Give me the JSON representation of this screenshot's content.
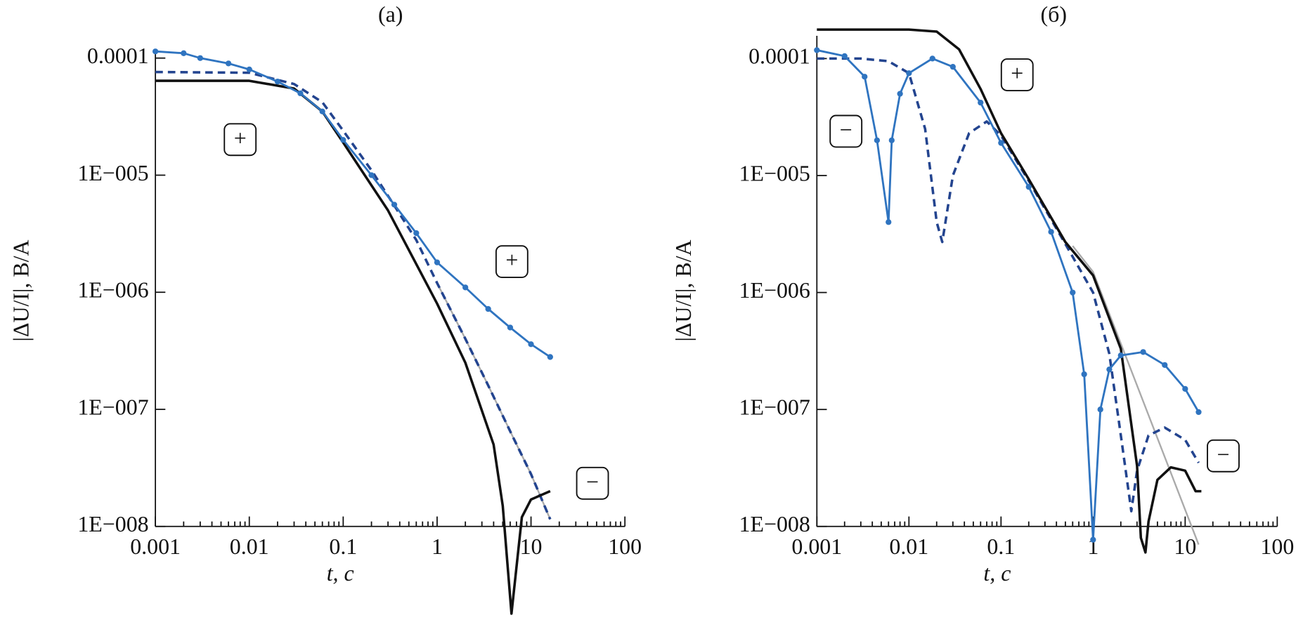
{
  "chart_data": [
    {
      "type": "line",
      "title": "(а)",
      "xlabel": "t, с",
      "ylabel": "|ΔU/I|, В/А",
      "xscale": "log",
      "yscale": "log",
      "xlim": [
        0.001,
        100
      ],
      "ylim": [
        1e-08,
        0.00015
      ],
      "xticks": [
        0.001,
        0.01,
        0.1,
        1,
        10,
        100
      ],
      "yticks": [
        {
          "value": 1e-08,
          "label": "1E−008"
        },
        {
          "value": 1e-07,
          "label": "1E−007"
        },
        {
          "value": 1e-06,
          "label": "1E−006"
        },
        {
          "value": 1e-05,
          "label": "1E−005"
        },
        {
          "value": 0.0001,
          "label": "0.0001"
        }
      ],
      "annotations": [
        "+",
        "+",
        "−"
      ],
      "series": [
        {
          "color": "#aaaaaa",
          "x": [
            1,
            2,
            3.5,
            6,
            10,
            16
          ],
          "values": [
            1.2e-06,
            4e-07,
            1.6e-07,
            6.5e-08,
            2.8e-08,
            1.15e-08
          ]
        },
        {
          "color": "#23448f",
          "dash": true,
          "x": [
            0.001,
            0.01,
            0.03,
            0.06,
            0.1,
            0.2,
            0.35,
            0.6,
            1,
            2,
            3.5,
            6,
            10,
            16
          ],
          "values": [
            7.6e-05,
            7.5e-05,
            6e-05,
            4.2e-05,
            2.4e-05,
            1.1e-05,
            5.5e-06,
            2.8e-06,
            1.2e-06,
            4e-07,
            1.6e-07,
            6.5e-08,
            2.8e-08,
            1.15e-08
          ]
        },
        {
          "color": "#111111",
          "x": [
            0.001,
            0.01,
            0.03,
            0.06,
            0.1,
            0.3,
            1,
            2,
            4,
            5,
            6.2,
            8,
            10,
            16
          ],
          "values": [
            6.4e-05,
            6.4e-05,
            5.5e-05,
            3.5e-05,
            1.9e-05,
            5e-06,
            8e-07,
            2.5e-07,
            5e-08,
            1.5e-08,
            1.8e-09,
            1.2e-08,
            1.7e-08,
            2e-08
          ]
        },
        {
          "color": "#2f74c0",
          "markers": true,
          "x": [
            0.001,
            0.002,
            0.003,
            0.006,
            0.01,
            0.02,
            0.035,
            0.06,
            0.1,
            0.2,
            0.35,
            0.6,
            1,
            2,
            3.5,
            6,
            10,
            16
          ],
          "values": [
            0.000114,
            0.00011,
            0.0001,
            9e-05,
            8e-05,
            6.3e-05,
            5e-05,
            3.5e-05,
            2e-05,
            1e-05,
            5.6e-06,
            3.2e-06,
            1.8e-06,
            1.1e-06,
            7.2e-07,
            5e-07,
            3.6e-07,
            2.8e-07
          ]
        }
      ]
    },
    {
      "type": "line",
      "title": "(б)",
      "xlabel": "t, с",
      "ylabel": "|ΔU/I|, В/А",
      "xscale": "log",
      "yscale": "log",
      "xlim": [
        0.001,
        100
      ],
      "ylim": [
        1e-08,
        0.0002
      ],
      "xticks": [
        0.001,
        0.01,
        0.1,
        1,
        10,
        100
      ],
      "yticks": [
        {
          "value": 1e-08,
          "label": "1E−008"
        },
        {
          "value": 1e-07,
          "label": "1E−007"
        },
        {
          "value": 1e-06,
          "label": "1E−006"
        },
        {
          "value": 1e-05,
          "label": "1E−005"
        },
        {
          "value": 0.0001,
          "label": "0.0001"
        }
      ],
      "annotations": [
        "−",
        "+",
        "−"
      ],
      "series": [
        {
          "color": "#aaaaaa",
          "x": [
            0.6,
            1,
            14
          ],
          "values": [
            2.5e-06,
            1.5e-06,
            7e-09
          ]
        },
        {
          "color": "#23448f",
          "dash": true,
          "x": [
            0.001,
            0.003,
            0.006,
            0.01,
            0.015,
            0.02,
            0.023,
            0.03,
            0.045,
            0.07,
            0.1,
            0.2,
            0.5,
            1,
            1.5,
            2,
            2.6,
            3,
            4,
            6,
            10,
            14
          ],
          "values": [
            0.0001,
            0.0001,
            9.5e-05,
            7.5e-05,
            2.5e-05,
            4e-06,
            2.7e-06,
            1e-05,
            2.3e-05,
            2.9e-05,
            2.2e-05,
            9e-06,
            2.6e-06,
            1e-06,
            3e-07,
            6e-08,
            1.35e-08,
            3e-08,
            6e-08,
            7e-08,
            5.5e-08,
            3.5e-08
          ]
        },
        {
          "color": "#111111",
          "x": [
            0.001,
            0.01,
            0.02,
            0.035,
            0.06,
            0.1,
            0.2,
            0.5,
            1,
            2,
            3,
            3.3,
            3.7,
            4,
            5,
            7,
            10,
            13,
            15
          ],
          "values": [
            0.000177,
            0.000177,
            0.00017,
            0.00012,
            5.5e-05,
            2.3e-05,
            9.3e-06,
            2.7e-06,
            1.4e-06,
            3.3e-07,
            3.3e-08,
            8e-09,
            6e-09,
            1.1e-08,
            2.5e-08,
            3.2e-08,
            3e-08,
            2e-08,
            2e-08
          ]
        },
        {
          "color": "#2f74c0",
          "markers": true,
          "x": [
            0.001,
            0.002,
            0.0033,
            0.0045,
            0.006,
            0.0065,
            0.008,
            0.01,
            0.018,
            0.03,
            0.06,
            0.1,
            0.2,
            0.35,
            0.6,
            0.8,
            1,
            1.2,
            1.5,
            2,
            3.5,
            6,
            10,
            14
          ],
          "values": [
            0.000118,
            0.000105,
            7e-05,
            2e-05,
            4e-06,
            2e-05,
            5e-05,
            7.5e-05,
            0.0001,
            8.5e-05,
            4.2e-05,
            1.9e-05,
            8e-06,
            3.3e-06,
            1e-06,
            2e-07,
            7.7e-09,
            1e-07,
            2.2e-07,
            2.9e-07,
            3.1e-07,
            2.4e-07,
            1.5e-07,
            9.5e-08
          ]
        }
      ]
    }
  ]
}
